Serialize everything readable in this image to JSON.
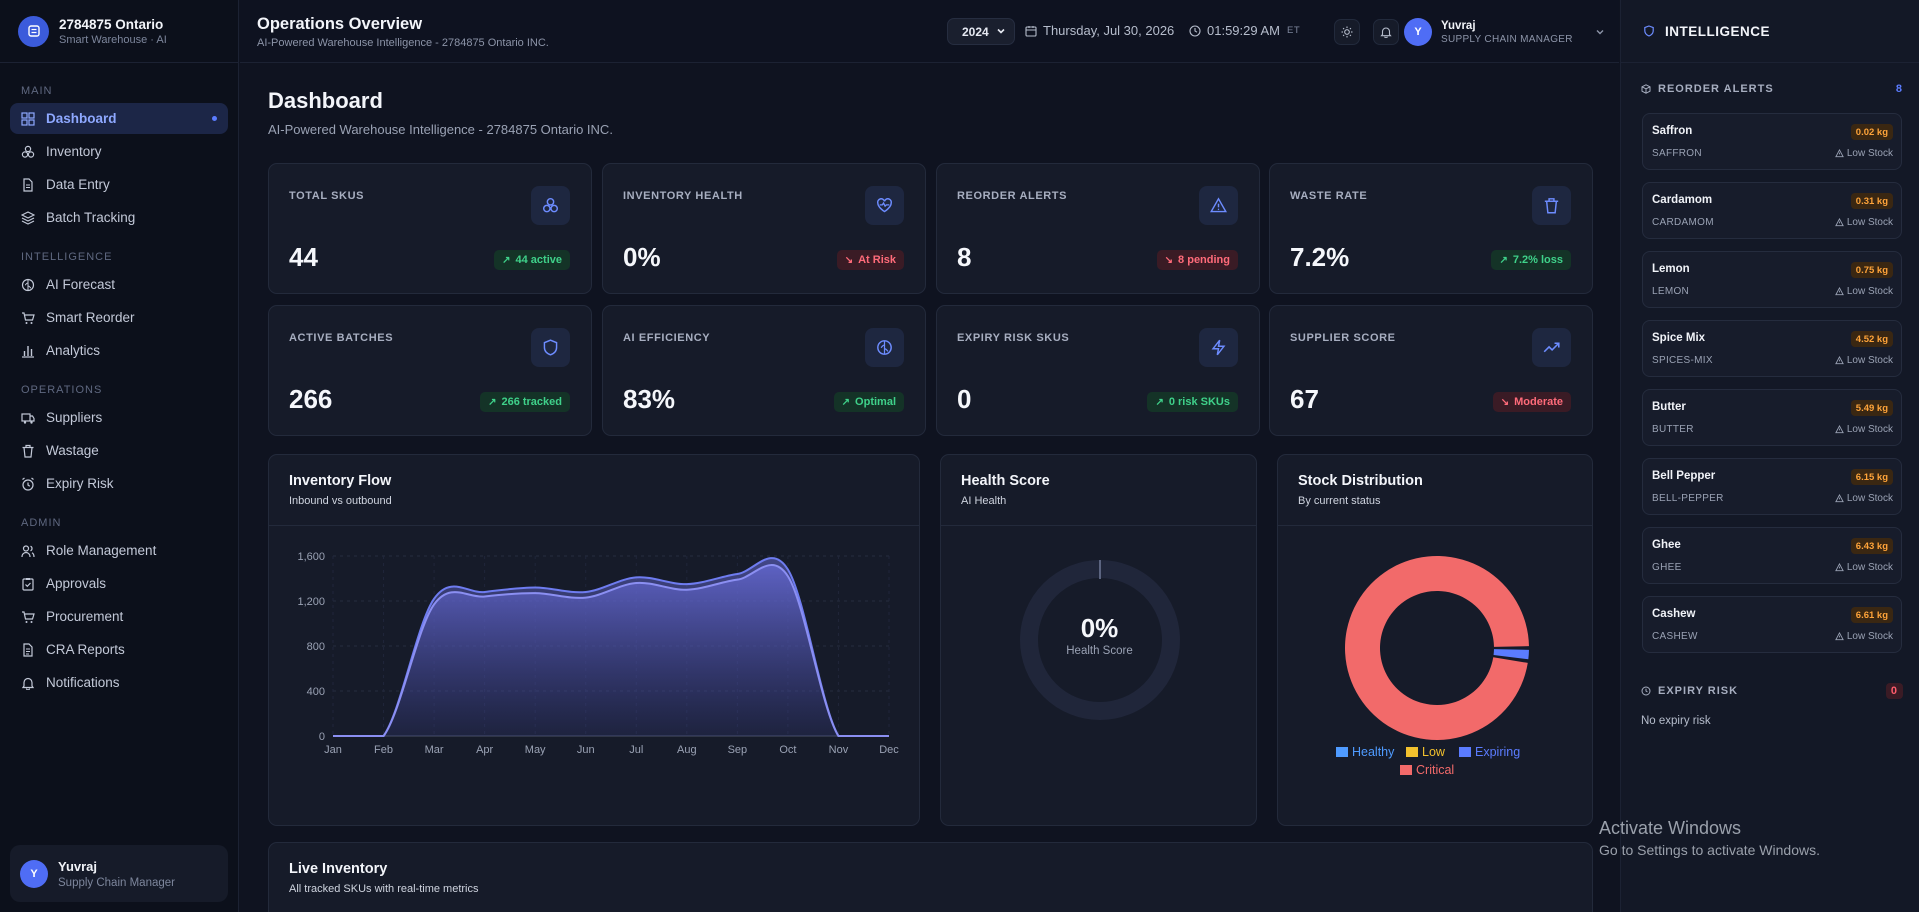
{
  "brand": {
    "name": "2784875 Ontario",
    "subtitle": "Smart Warehouse · AI"
  },
  "sidebar": {
    "sections": {
      "main": "MAIN",
      "intelligence": "INTELLIGENCE",
      "operations": "OPERATIONS",
      "admin": "ADMIN"
    },
    "items": [
      {
        "label": "Dashboard",
        "icon": "grid-icon"
      },
      {
        "label": "Inventory",
        "icon": "boxes-icon"
      },
      {
        "label": "Data Entry",
        "icon": "file-icon"
      },
      {
        "label": "Batch Tracking",
        "icon": "layers-icon"
      },
      {
        "label": "AI Forecast",
        "icon": "brain-icon"
      },
      {
        "label": "Smart Reorder",
        "icon": "cart-icon"
      },
      {
        "label": "Analytics",
        "icon": "bar-chart-icon"
      },
      {
        "label": "Suppliers",
        "icon": "truck-icon"
      },
      {
        "label": "Wastage",
        "icon": "trash-icon"
      },
      {
        "label": "Expiry Risk",
        "icon": "alarm-icon"
      },
      {
        "label": "Role Management",
        "icon": "users-icon"
      },
      {
        "label": "Approvals",
        "icon": "clipboard-check-icon"
      },
      {
        "label": "Procurement",
        "icon": "cart-icon"
      },
      {
        "label": "CRA Reports",
        "icon": "report-icon"
      },
      {
        "label": "Notifications",
        "icon": "bell-icon"
      }
    ],
    "user": {
      "initial": "Y",
      "name": "Yuvraj",
      "role": "Supply Chain Manager"
    }
  },
  "header": {
    "title": "Operations Overview",
    "subtitle": "AI-Powered Warehouse Intelligence - 2784875 Ontario INC.",
    "year": "2024",
    "date": "Thursday, Jul 30, 2026",
    "time": "01:59:29 AM",
    "timezone": "ET",
    "user": {
      "initial": "Y",
      "name": "Yuvraj",
      "role": "SUPPLY CHAIN MANAGER"
    }
  },
  "page": {
    "title": "Dashboard",
    "subtitle": "AI-Powered Warehouse Intelligence - 2784875 Ontario INC."
  },
  "stats": [
    {
      "label": "TOTAL SKUS",
      "value": "44",
      "badge": "44 active",
      "trend": "up",
      "tone": "green",
      "icon": "boxes-icon"
    },
    {
      "label": "INVENTORY HEALTH",
      "value": "0%",
      "badge": "At Risk",
      "trend": "down",
      "tone": "red",
      "icon": "heart-pulse-icon"
    },
    {
      "label": "REORDER ALERTS",
      "value": "8",
      "badge": "8 pending",
      "trend": "down",
      "tone": "red",
      "icon": "alert-triangle-icon"
    },
    {
      "label": "WASTE RATE",
      "value": "7.2%",
      "badge": "7.2% loss",
      "trend": "up",
      "tone": "green",
      "icon": "trash-icon"
    },
    {
      "label": "ACTIVE BATCHES",
      "value": "266",
      "badge": "266 tracked",
      "trend": "up",
      "tone": "green",
      "icon": "shield-icon"
    },
    {
      "label": "AI EFFICIENCY",
      "value": "83%",
      "badge": "Optimal",
      "trend": "up",
      "tone": "green",
      "icon": "brain-icon"
    },
    {
      "label": "EXPIRY RISK SKUS",
      "value": "0",
      "badge": "0 risk SKUs",
      "trend": "up",
      "tone": "green",
      "icon": "zap-icon"
    },
    {
      "label": "SUPPLIER SCORE",
      "value": "67",
      "badge": "Moderate",
      "trend": "down",
      "tone": "red",
      "icon": "trending-up-icon"
    }
  ],
  "inventory_flow": {
    "title": "Inventory Flow",
    "subtitle": "Inbound vs outbound"
  },
  "health_score": {
    "title": "Health Score",
    "subtitle": "AI Health",
    "value": "0%",
    "label": "Health Score",
    "fraction": 0
  },
  "stock_distribution": {
    "title": "Stock Distribution",
    "subtitle": "By current status",
    "legend": [
      {
        "label": "Healthy",
        "color": "#4f9bff"
      },
      {
        "label": "Low",
        "color": "#f2c12e"
      },
      {
        "label": "Expiring",
        "color": "#5b7cff"
      },
      {
        "label": "Critical",
        "color": "#f26a6a"
      }
    ]
  },
  "live_inventory": {
    "title": "Live Inventory",
    "subtitle": "All tracked SKUs with real-time metrics"
  },
  "intelligence": {
    "title": "INTELLIGENCE",
    "reorder_title": "REORDER ALERTS",
    "reorder_count": "8",
    "alerts": [
      {
        "name": "Saffron",
        "code": "SAFFRON",
        "qty": "0.02 kg",
        "status": "Low Stock"
      },
      {
        "name": "Cardamom",
        "code": "CARDAMOM",
        "qty": "0.31 kg",
        "status": "Low Stock"
      },
      {
        "name": "Lemon",
        "code": "LEMON",
        "qty": "0.75 kg",
        "status": "Low Stock"
      },
      {
        "name": "Spice Mix",
        "code": "SPICES-MIX",
        "qty": "4.52 kg",
        "status": "Low Stock"
      },
      {
        "name": "Butter",
        "code": "BUTTER",
        "qty": "5.49 kg",
        "status": "Low Stock"
      },
      {
        "name": "Bell Pepper",
        "code": "BELL-PEPPER",
        "qty": "6.15 kg",
        "status": "Low Stock"
      },
      {
        "name": "Ghee",
        "code": "GHEE",
        "qty": "6.43 kg",
        "status": "Low Stock"
      },
      {
        "name": "Cashew",
        "code": "CASHEW",
        "qty": "6.61 kg",
        "status": "Low Stock"
      }
    ],
    "expiry_title": "EXPIRY RISK",
    "expiry_count": "0",
    "expiry_empty": "No expiry risk"
  },
  "watermark": {
    "line1": "Activate Windows",
    "line2": "Go to Settings to activate Windows."
  },
  "colors": {
    "accent": "#5b7cff",
    "bg": "#0f1320",
    "card": "#161b29",
    "success": "#3fd18a",
    "danger": "#ff6b7a",
    "warning": "#ffa43a"
  },
  "chart_data": [
    {
      "type": "area",
      "x": [
        "Jan",
        "Feb",
        "Mar",
        "Apr",
        "May",
        "Jun",
        "Jul",
        "Aug",
        "Sep",
        "Oct",
        "Nov",
        "Dec"
      ],
      "ylim": [
        0,
        1600
      ],
      "yticks": [
        "0",
        "400",
        "800",
        "1,200",
        "1,600"
      ],
      "grid": true,
      "series": [
        {
          "values": [
            0,
            0,
            1220,
            1280,
            1320,
            1280,
            1410,
            1350,
            1440,
            1480,
            0,
            0
          ]
        },
        {
          "values": [
            0,
            0,
            1170,
            1240,
            1270,
            1230,
            1360,
            1300,
            1390,
            1420,
            0,
            0
          ]
        }
      ]
    },
    {
      "type": "pie",
      "categories": [
        "Healthy",
        "Low",
        "Expiring",
        "Critical"
      ],
      "values": [
        0,
        0,
        1,
        43
      ]
    }
  ]
}
